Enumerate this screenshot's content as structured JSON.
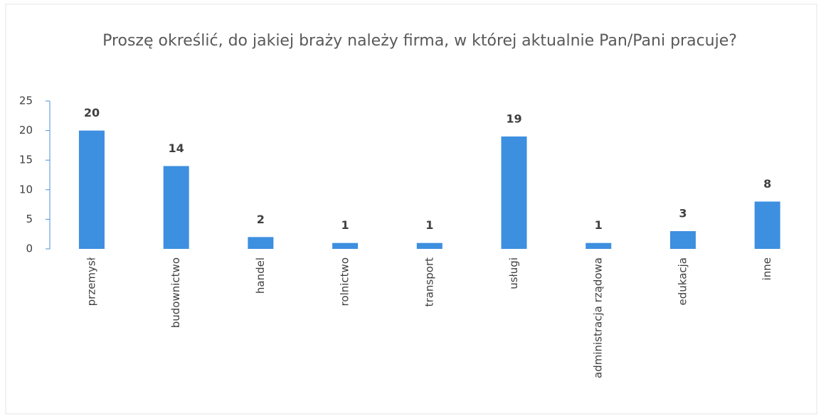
{
  "chart_data": {
    "type": "bar",
    "title": "Proszę określić, do jakiej braży należy firma, w której aktualnie Pan/Pani pracuje?",
    "categories": [
      "przemysł",
      "budownictwo",
      "handel",
      "rolnictwo",
      "transport",
      "usługi",
      "administracja rządowa",
      "edukacja",
      "inne"
    ],
    "values": [
      20,
      14,
      2,
      1,
      1,
      19,
      1,
      3,
      8
    ],
    "color": "#3d8fe0",
    "ylim": [
      0,
      25
    ],
    "yticks": [
      0,
      5,
      10,
      15,
      20,
      25
    ],
    "grid": false
  }
}
